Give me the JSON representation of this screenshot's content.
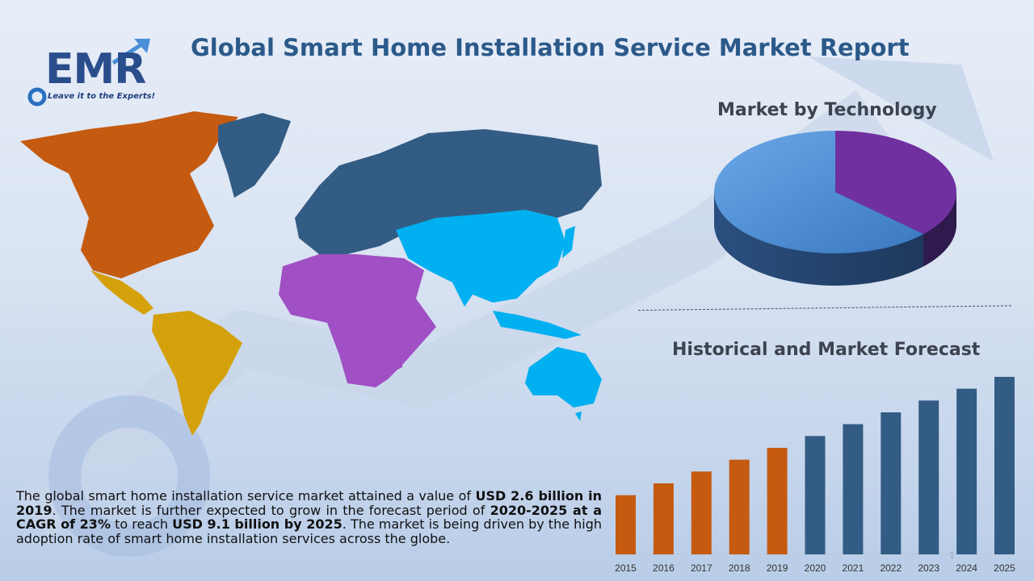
{
  "brand": {
    "logo_text": "EMR",
    "tagline": "Leave it to the Experts!",
    "colors": {
      "navy": "#2a4e8c",
      "orange": "#c55a11",
      "slate": "#335c85"
    }
  },
  "title": "Global Smart Home Installation Service Market Report",
  "pie_section": {
    "title": "Market by Technology"
  },
  "forecast_section": {
    "title": "Historical and Market Forecast"
  },
  "description": {
    "p1": "The global smart home installation service market attained a value of ",
    "b1": "USD 2.6 billion in 2019",
    "p2": ". The market is further expected to grow in the forecast period of ",
    "b2": "2020-2025 at a CAGR of 23%",
    "p3": " to reach ",
    "b3": "USD 9.1 billion by 2025",
    "p4": ". The market is being driven by the high adoption rate of smart home installation services across the globe."
  },
  "slide_number": "1",
  "map_regions": [
    {
      "name": "North America",
      "color": "#c55a11"
    },
    {
      "name": "Latin America",
      "color": "#d4a10a"
    },
    {
      "name": "Europe & Russia",
      "color": "#335c85"
    },
    {
      "name": "Middle East & Africa",
      "color": "#a04fc4"
    },
    {
      "name": "Asia Pacific",
      "color": "#00b0f0"
    }
  ],
  "chart_data": [
    {
      "type": "pie",
      "title": "Market by Technology",
      "slices": [
        {
          "label": "",
          "value": 63,
          "color": "#4f8fd6"
        },
        {
          "label": "",
          "value": 37,
          "color": "#7030a0"
        }
      ]
    },
    {
      "type": "bar",
      "title": "Historical and Market Forecast",
      "categories": [
        "2015",
        "2016",
        "2017",
        "2018",
        "2019",
        "2020",
        "2021",
        "2022",
        "2023",
        "2024",
        "2025"
      ],
      "values": [
        1.0,
        1.2,
        1.4,
        1.6,
        1.8,
        2.0,
        2.2,
        2.4,
        2.6,
        2.8,
        3.0
      ],
      "historical_color": "#c55a11",
      "forecast_color": "#335c85",
      "historical_count": 5
    }
  ]
}
